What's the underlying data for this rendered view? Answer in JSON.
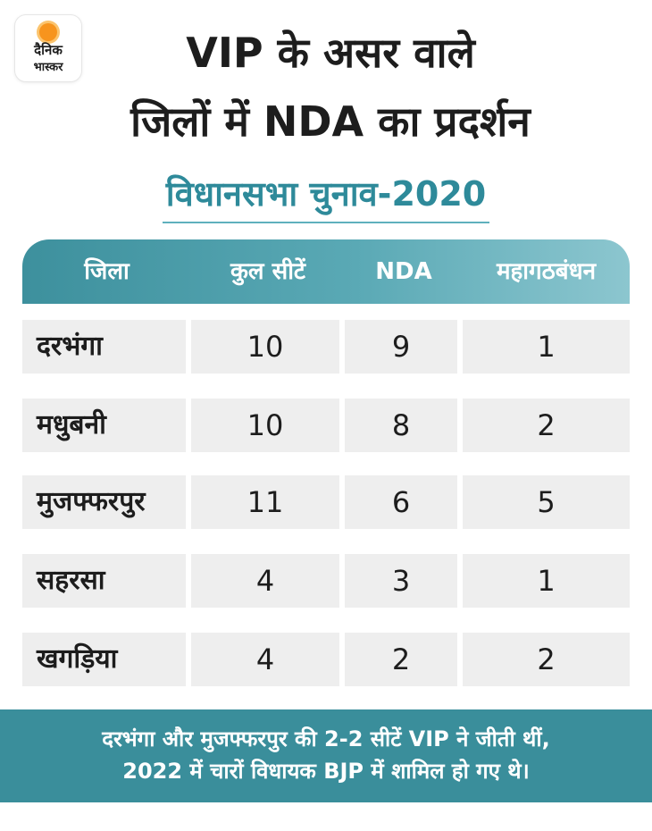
{
  "brand": {
    "line1": "दैनिक",
    "line2": "भास्कर"
  },
  "title": {
    "line1": "VIP के असर वाले",
    "line2": "जिलों में NDA का प्रदर्शन"
  },
  "subtitle": "विधानसभा चुनाव-2020",
  "colors": {
    "accent": "#3a8e9b",
    "header_start": "#3d909d",
    "header_end": "#8cc6cf",
    "cell_bg": "#eeeeee",
    "logo_sun": "#f7941d"
  },
  "table": {
    "headers": [
      "जिला",
      "कुल सीटें",
      "NDA",
      "महागठबंधन"
    ],
    "rows": [
      [
        "दरभंगा",
        "10",
        "9",
        "1"
      ],
      [
        "मधुबनी",
        "10",
        "8",
        "2"
      ],
      [
        "मुजफ्फरपुर",
        "11",
        "6",
        "5"
      ],
      [
        "सहरसा",
        "4",
        "3",
        "1"
      ],
      [
        "खगड़िया",
        "4",
        "2",
        "2"
      ]
    ]
  },
  "footer": {
    "line1": "दरभंगा और मुजफ्फरपुर की 2-2 सीटें VIP ने जीती थीं,",
    "line2": "2022 में चारों विधायक BJP में शामिल हो गए थे।"
  }
}
